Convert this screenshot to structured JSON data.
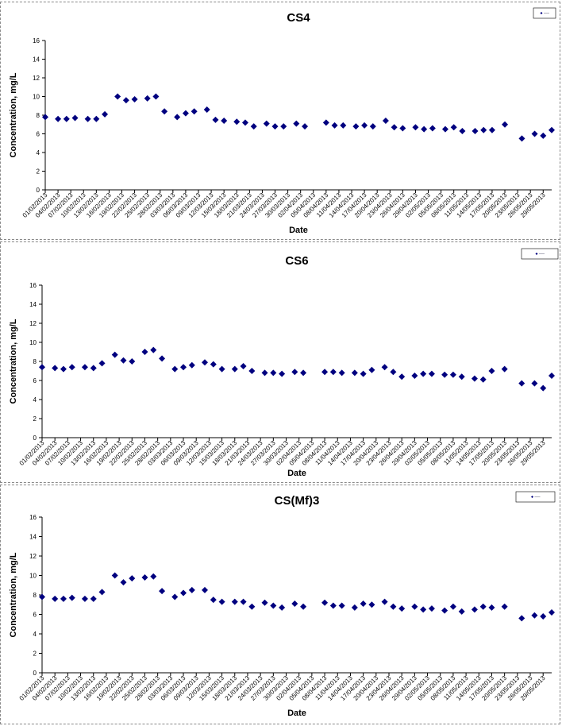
{
  "chart_data": [
    {
      "type": "scatter",
      "title": "CS4",
      "xlabel": "Date",
      "ylabel": "Concentration, mg/L",
      "ylim": [
        0,
        16
      ],
      "yticks": [
        0,
        2,
        4,
        6,
        8,
        10,
        12,
        14,
        16
      ],
      "grid": false,
      "legend_position": "top-right",
      "marker_color": "#00007f",
      "xticks": [
        "01/02/2013",
        "04/02/2013",
        "07/02/2013",
        "10/02/2013",
        "13/02/2013",
        "16/02/2013",
        "19/02/2013",
        "22/02/2013",
        "25/02/2013",
        "28/02/2013",
        "03/03/2013",
        "06/03/2013",
        "09/03/2013",
        "12/03/2013",
        "15/03/2013",
        "18/03/2013",
        "21/03/2013",
        "24/03/2013",
        "27/03/2013",
        "30/03/2013",
        "02/04/2013",
        "05/04/2013",
        "08/04/2013",
        "11/04/2013",
        "14/04/2013",
        "17/04/2013",
        "20/04/2013",
        "23/04/2013",
        "26/04/2013",
        "29/04/2013",
        "02/05/2013",
        "05/05/2013",
        "08/05/2013",
        "11/05/2013",
        "14/05/2013",
        "17/05/2013",
        "20/05/2013",
        "23/05/2013",
        "26/05/2013",
        "29/05/2013"
      ],
      "series": [
        {
          "x": [
            "01/02/2013",
            "04/02/2013",
            "06/02/2013",
            "08/02/2013",
            "11/02/2013",
            "13/02/2013",
            "15/02/2013",
            "18/02/2013",
            "20/02/2013",
            "22/02/2013",
            "25/02/2013",
            "27/02/2013",
            "01/03/2013",
            "04/03/2013",
            "06/03/2013",
            "08/03/2013",
            "11/03/2013",
            "13/03/2013",
            "15/03/2013",
            "18/03/2013",
            "20/03/2013",
            "22/03/2013",
            "25/03/2013",
            "27/03/2013",
            "29/03/2013",
            "01/04/2013",
            "03/04/2013",
            "08/04/2013",
            "10/04/2013",
            "12/04/2013",
            "15/04/2013",
            "17/04/2013",
            "19/04/2013",
            "22/04/2013",
            "24/04/2013",
            "26/04/2013",
            "29/04/2013",
            "01/05/2013",
            "03/05/2013",
            "06/05/2013",
            "08/05/2013",
            "10/05/2013",
            "13/05/2013",
            "15/05/2013",
            "17/05/2013",
            "20/05/2013",
            "24/05/2013",
            "27/05/2013",
            "29/05/2013",
            "31/05/2013"
          ],
          "y": [
            7.8,
            7.6,
            7.6,
            7.7,
            7.6,
            7.6,
            8.1,
            10.0,
            9.6,
            9.7,
            9.8,
            10.0,
            8.4,
            7.8,
            8.2,
            8.4,
            8.6,
            7.5,
            7.4,
            7.3,
            7.2,
            6.8,
            7.1,
            6.8,
            6.8,
            7.1,
            6.8,
            7.2,
            6.9,
            6.9,
            6.8,
            6.9,
            6.8,
            7.4,
            6.7,
            6.6,
            6.7,
            6.5,
            6.6,
            6.5,
            6.7,
            6.3,
            6.3,
            6.4,
            6.4,
            7.0,
            5.5,
            6.0,
            5.8,
            6.4
          ]
        }
      ]
    },
    {
      "type": "scatter",
      "title": "CS6",
      "xlabel": "Date",
      "ylabel": "Concentration, mg/L",
      "ylim": [
        0,
        16
      ],
      "yticks": [
        0,
        2,
        4,
        6,
        8,
        10,
        12,
        14,
        16
      ],
      "grid": false,
      "legend_position": "top-right",
      "marker_color": "#00007f",
      "xticks": [
        "01/02/2013",
        "04/02/2013",
        "07/02/2013",
        "10/02/2013",
        "13/02/2013",
        "16/02/2013",
        "19/02/2013",
        "22/02/2013",
        "25/02/2013",
        "28/02/2013",
        "03/03/2013",
        "06/03/2013",
        "09/03/2013",
        "12/03/2013",
        "15/03/2013",
        "18/03/2013",
        "21/03/2013",
        "24/03/2013",
        "27/03/2013",
        "30/03/2013",
        "02/04/2013",
        "05/04/2013",
        "08/04/2013",
        "11/04/2013",
        "14/04/2013",
        "17/04/2013",
        "20/04/2013",
        "23/04/2013",
        "26/04/2013",
        "29/04/2013",
        "02/05/2013",
        "05/05/2013",
        "08/05/2013",
        "11/05/2013",
        "14/05/2013",
        "17/05/2013",
        "20/05/2013",
        "23/05/2013",
        "26/05/2013",
        "29/05/2013"
      ],
      "series": [
        {
          "x": [
            "01/02/2013",
            "04/02/2013",
            "06/02/2013",
            "08/02/2013",
            "11/02/2013",
            "13/02/2013",
            "15/02/2013",
            "18/02/2013",
            "20/02/2013",
            "22/02/2013",
            "25/02/2013",
            "27/02/2013",
            "01/03/2013",
            "04/03/2013",
            "06/03/2013",
            "08/03/2013",
            "11/03/2013",
            "13/03/2013",
            "15/03/2013",
            "18/03/2013",
            "20/03/2013",
            "22/03/2013",
            "25/03/2013",
            "27/03/2013",
            "29/03/2013",
            "01/04/2013",
            "03/04/2013",
            "08/04/2013",
            "10/04/2013",
            "12/04/2013",
            "15/04/2013",
            "17/04/2013",
            "19/04/2013",
            "22/04/2013",
            "24/04/2013",
            "26/04/2013",
            "29/04/2013",
            "01/05/2013",
            "03/05/2013",
            "06/05/2013",
            "08/05/2013",
            "10/05/2013",
            "13/05/2013",
            "15/05/2013",
            "17/05/2013",
            "20/05/2013",
            "24/05/2013",
            "27/05/2013",
            "29/05/2013",
            "31/05/2013"
          ],
          "y": [
            7.4,
            7.3,
            7.2,
            7.4,
            7.4,
            7.3,
            7.8,
            8.7,
            8.1,
            8.0,
            9.0,
            9.2,
            8.3,
            7.2,
            7.4,
            7.6,
            7.9,
            7.7,
            7.2,
            7.2,
            7.5,
            7.0,
            6.8,
            6.8,
            6.7,
            6.9,
            6.8,
            6.9,
            6.9,
            6.8,
            6.8,
            6.7,
            7.1,
            7.4,
            6.9,
            6.4,
            6.5,
            6.7,
            6.7,
            6.6,
            6.6,
            6.4,
            6.2,
            6.1,
            7.0,
            7.2,
            5.7,
            5.7,
            5.2,
            6.5
          ]
        }
      ]
    },
    {
      "type": "scatter",
      "title": "CS(Mf)3",
      "xlabel": "Date",
      "ylabel": "Concentration, mg/L",
      "ylim": [
        0,
        16
      ],
      "yticks": [
        0,
        2,
        4,
        6,
        8,
        10,
        12,
        14,
        16
      ],
      "grid": false,
      "legend_position": "top-right",
      "marker_color": "#00007f",
      "xticks": [
        "01/02/2013",
        "04/02/2013",
        "07/02/2013",
        "10/02/2013",
        "13/02/2013",
        "16/02/2013",
        "19/02/2013",
        "22/02/2013",
        "25/02/2013",
        "28/02/2013",
        "03/03/2013",
        "06/03/2013",
        "09/03/2013",
        "12/03/2013",
        "15/03/2013",
        "18/03/2013",
        "21/03/2013",
        "24/03/2013",
        "27/03/2013",
        "30/03/2013",
        "02/04/2013",
        "05/04/2013",
        "08/04/2013",
        "11/04/2013",
        "14/04/2013",
        "17/04/2013",
        "20/04/2013",
        "23/04/2013",
        "26/04/2013",
        "29/04/2013",
        "02/05/2013",
        "05/05/2013",
        "08/05/2013",
        "11/05/2013",
        "14/05/2013",
        "17/05/2013",
        "20/05/2013",
        "23/05/2013",
        "26/05/2013",
        "29/05/2013"
      ],
      "series": [
        {
          "x": [
            "01/02/2013",
            "04/02/2013",
            "06/02/2013",
            "08/02/2013",
            "11/02/2013",
            "13/02/2013",
            "15/02/2013",
            "18/02/2013",
            "20/02/2013",
            "22/02/2013",
            "25/02/2013",
            "27/02/2013",
            "01/03/2013",
            "04/03/2013",
            "06/03/2013",
            "08/03/2013",
            "11/03/2013",
            "13/03/2013",
            "15/03/2013",
            "18/03/2013",
            "20/03/2013",
            "22/03/2013",
            "25/03/2013",
            "27/03/2013",
            "29/03/2013",
            "01/04/2013",
            "03/04/2013",
            "08/04/2013",
            "10/04/2013",
            "12/04/2013",
            "15/04/2013",
            "17/04/2013",
            "19/04/2013",
            "22/04/2013",
            "24/04/2013",
            "26/04/2013",
            "29/04/2013",
            "01/05/2013",
            "03/05/2013",
            "06/05/2013",
            "08/05/2013",
            "10/05/2013",
            "13/05/2013",
            "15/05/2013",
            "17/05/2013",
            "20/05/2013",
            "24/05/2013",
            "27/05/2013",
            "29/05/2013",
            "31/05/2013"
          ],
          "y": [
            7.8,
            7.6,
            7.6,
            7.7,
            7.6,
            7.6,
            8.3,
            10.0,
            9.3,
            9.7,
            9.8,
            9.9,
            8.4,
            7.8,
            8.2,
            8.5,
            8.5,
            7.5,
            7.3,
            7.3,
            7.3,
            6.8,
            7.2,
            6.9,
            6.7,
            7.1,
            6.8,
            7.2,
            6.9,
            6.9,
            6.7,
            7.1,
            7.0,
            7.3,
            6.8,
            6.6,
            6.8,
            6.5,
            6.6,
            6.4,
            6.8,
            6.3,
            6.5,
            6.8,
            6.7,
            6.8,
            5.6,
            5.9,
            5.8,
            6.2
          ]
        }
      ]
    }
  ]
}
